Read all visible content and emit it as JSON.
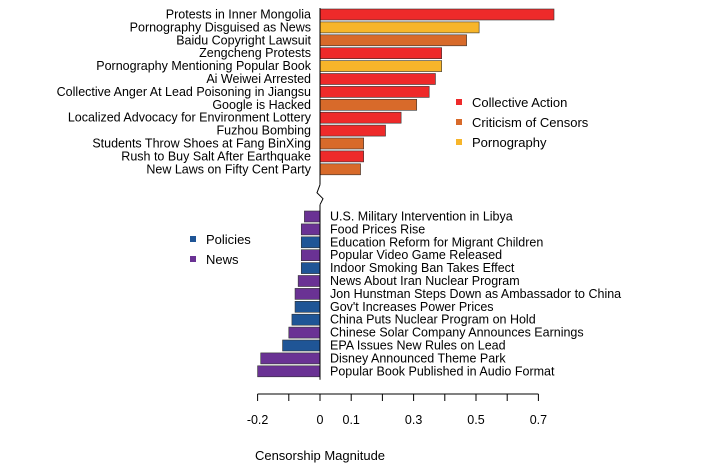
{
  "chart_data": {
    "type": "bar",
    "orientation": "horizontal",
    "title": "",
    "xlabel": "Censorship Magnitude",
    "ylabel": "",
    "xlim": [
      -0.2,
      0.7
    ],
    "xticks": [
      -0.2,
      0,
      0.1,
      0.3,
      0.5,
      0.7
    ],
    "xtick_labels": [
      "-0.2",
      "0",
      "0.1",
      "0.3",
      "0.5",
      "0.7"
    ],
    "grid": false,
    "colors": {
      "Collective Action": "#ee2a2a",
      "Criticism of Censors": "#d86a2a",
      "Pornography": "#f7b52a",
      "Policies": "#1f5596",
      "News": "#6a3294"
    },
    "legend_top": [
      "Collective Action",
      "Criticism of Censors",
      "Pornography"
    ],
    "legend_bottom": [
      "Policies",
      "News"
    ],
    "top_group": [
      {
        "label": "Protests in Inner Mongolia",
        "value": 0.75,
        "category": "Collective Action"
      },
      {
        "label": "Pornography Disguised as News",
        "value": 0.51,
        "category": "Pornography"
      },
      {
        "label": "Baidu Copyright Lawsuit",
        "value": 0.47,
        "category": "Criticism of Censors"
      },
      {
        "label": "Zengcheng Protests",
        "value": 0.39,
        "category": "Collective Action"
      },
      {
        "label": "Pornography Mentioning Popular Book",
        "value": 0.39,
        "category": "Pornography"
      },
      {
        "label": "Ai Weiwei Arrested",
        "value": 0.37,
        "category": "Collective Action"
      },
      {
        "label": "Collective Anger At Lead Poisoning in Jiangsu",
        "value": 0.35,
        "category": "Collective Action"
      },
      {
        "label": "Google is Hacked",
        "value": 0.31,
        "category": "Criticism of Censors"
      },
      {
        "label": "Localized Advocacy for Environment Lottery",
        "value": 0.26,
        "category": "Collective Action"
      },
      {
        "label": "Fuzhou Bombing",
        "value": 0.21,
        "category": "Collective Action"
      },
      {
        "label": "Students Throw Shoes at Fang BinXing",
        "value": 0.14,
        "category": "Criticism of Censors"
      },
      {
        "label": "Rush to Buy Salt After Earthquake",
        "value": 0.14,
        "category": "Collective Action"
      },
      {
        "label": "New Laws on Fifty Cent Party",
        "value": 0.13,
        "category": "Criticism of Censors"
      }
    ],
    "bottom_group": [
      {
        "label": "U.S. Military Intervention in Libya",
        "value": -0.05,
        "category": "News"
      },
      {
        "label": "Food Prices Rise",
        "value": -0.06,
        "category": "News"
      },
      {
        "label": "Education Reform for Migrant Children",
        "value": -0.06,
        "category": "Policies"
      },
      {
        "label": "Popular Video Game Released",
        "value": -0.06,
        "category": "News"
      },
      {
        "label": "Indoor Smoking Ban Takes Effect",
        "value": -0.06,
        "category": "Policies"
      },
      {
        "label": "News About Iran Nuclear Program",
        "value": -0.07,
        "category": "News"
      },
      {
        "label": "Jon Hunstman Steps Down as Ambassador to China",
        "value": -0.08,
        "category": "News"
      },
      {
        "label": "Gov't Increases Power Prices",
        "value": -0.08,
        "category": "Policies"
      },
      {
        "label": "China Puts Nuclear Program on Hold",
        "value": -0.09,
        "category": "Policies"
      },
      {
        "label": "Chinese Solar Company Announces Earnings",
        "value": -0.1,
        "category": "News"
      },
      {
        "label": "EPA Issues New Rules on Lead",
        "value": -0.12,
        "category": "Policies"
      },
      {
        "label": "Disney Announced Theme Park",
        "value": -0.19,
        "category": "News"
      },
      {
        "label": "Popular Book Published in Audio Format",
        "value": -0.2,
        "category": "News"
      }
    ]
  }
}
